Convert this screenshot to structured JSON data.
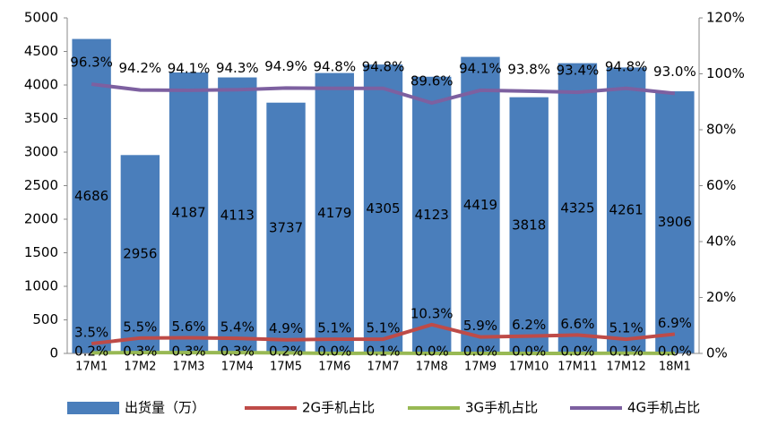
{
  "chart_data": {
    "type": "bar",
    "categories": [
      "17M1",
      "17M2",
      "17M3",
      "17M4",
      "17M5",
      "17M6",
      "17M7",
      "17M8",
      "17M9",
      "17M10",
      "17M11",
      "17M12",
      "18M1"
    ],
    "series": [
      {
        "name": "出货量（万）",
        "type": "bar",
        "color": "#4a7ebb",
        "axis": "y",
        "values": [
          4686,
          2956,
          4187,
          4113,
          3737,
          4179,
          4305,
          4123,
          4419,
          3818,
          4325,
          4261,
          3906
        ]
      },
      {
        "name": "2G手机占比",
        "type": "line",
        "color": "#be4b48",
        "axis": "y2",
        "values": [
          3.5,
          5.5,
          5.6,
          5.4,
          4.9,
          5.1,
          5.1,
          10.3,
          5.9,
          6.2,
          6.6,
          5.1,
          6.9
        ],
        "value_labels": [
          "3.5%",
          "5.5%",
          "5.6%",
          "5.4%",
          "4.9%",
          "5.1%",
          "5.1%",
          "10.3%",
          "5.9%",
          "6.2%",
          "6.6%",
          "5.1%",
          "6.9%"
        ]
      },
      {
        "name": "3G手机占比",
        "type": "line",
        "color": "#98b954",
        "axis": "y2",
        "values": [
          0.2,
          0.3,
          0.3,
          0.3,
          0.2,
          0.0,
          0.1,
          0.0,
          0.0,
          0.0,
          0.0,
          0.1,
          0.0
        ],
        "value_labels": [
          "0.2%",
          "0.3%",
          "0.3%",
          "0.3%",
          "0.2%",
          "0.0%",
          "0.1%",
          "0.0%",
          "0.0%",
          "0.0%",
          "0.0%",
          "0.1%",
          "0.0%"
        ]
      },
      {
        "name": "4G手机占比",
        "type": "line",
        "color": "#7d60a0",
        "axis": "y2",
        "values": [
          96.3,
          94.2,
          94.1,
          94.3,
          94.9,
          94.8,
          94.8,
          89.6,
          94.1,
          93.8,
          93.4,
          94.8,
          93.0
        ],
        "value_labels": [
          "96.3%",
          "94.2%",
          "94.1%",
          "94.3%",
          "94.9%",
          "94.8%",
          "94.8%",
          "89.6%",
          "94.1%",
          "93.8%",
          "93.4%",
          "94.8%",
          "93.0%"
        ]
      }
    ],
    "ylim": [
      0,
      5000
    ],
    "yticks": [
      0,
      500,
      1000,
      1500,
      2000,
      2500,
      3000,
      3500,
      4000,
      4500,
      5000
    ],
    "y2lim": [
      0,
      120
    ],
    "y2ticks": [
      {
        "value": 0,
        "label": "0%"
      },
      {
        "value": 20,
        "label": "20%"
      },
      {
        "value": 40,
        "label": "40%"
      },
      {
        "value": 60,
        "label": "60%"
      },
      {
        "value": 80,
        "label": "80%"
      },
      {
        "value": 100,
        "label": "100%"
      },
      {
        "value": 120,
        "label": "120%"
      }
    ],
    "legend": "bottom"
  }
}
